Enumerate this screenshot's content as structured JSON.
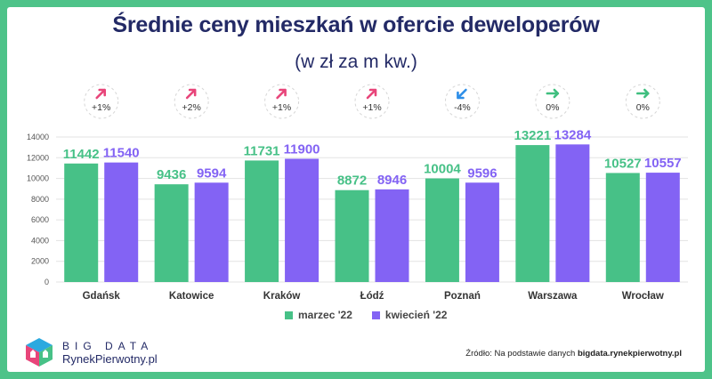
{
  "header": {
    "title": "Średnie ceny mieszkań w ofercie deweloperów",
    "subtitle": "(w zł za m kw.)"
  },
  "changes": [
    {
      "text": "+1%",
      "direction": "up",
      "color": "#e8457a"
    },
    {
      "text": "+2%",
      "direction": "up",
      "color": "#e8457a"
    },
    {
      "text": "+1%",
      "direction": "up",
      "color": "#e8457a"
    },
    {
      "text": "+1%",
      "direction": "up",
      "color": "#e8457a"
    },
    {
      "text": "-4%",
      "direction": "down",
      "color": "#2d8ee8"
    },
    {
      "text": "0%",
      "direction": "flat",
      "color": "#3fbf7f"
    },
    {
      "text": "0%",
      "direction": "flat",
      "color": "#3fbf7f"
    }
  ],
  "chart_data": {
    "type": "bar",
    "categories": [
      "Gdańsk",
      "Katowice",
      "Kraków",
      "Łódź",
      "Poznań",
      "Warszawa",
      "Wrocław"
    ],
    "series": [
      {
        "name": "marzec '22",
        "color": "#47c187",
        "values": [
          11442,
          9436,
          11731,
          8872,
          10004,
          13221,
          10527
        ]
      },
      {
        "name": "kwiecień '22",
        "color": "#8363f4",
        "values": [
          11540,
          9594,
          11900,
          8946,
          9596,
          13284,
          10557
        ]
      }
    ],
    "ylim": [
      0,
      14000
    ],
    "yticks": [
      0,
      2000,
      4000,
      6000,
      8000,
      10000,
      12000,
      14000
    ],
    "grid": true,
    "legend": "bottom"
  },
  "logo": {
    "line1": "BIG DATA",
    "line2": "RynekPierwotny.pl"
  },
  "source": {
    "prefix": "Źródło: Na podstawie danych ",
    "bold": "bigdata.rynekpierwotny.pl"
  }
}
